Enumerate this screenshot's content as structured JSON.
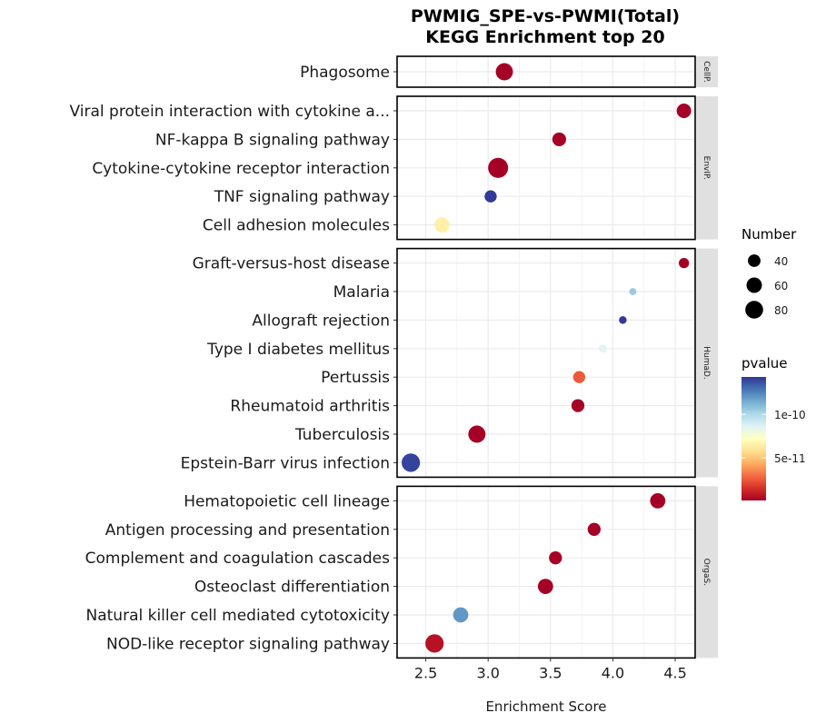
{
  "chart_data": {
    "type": "scatter",
    "title": [
      "PWMIG_SPE-vs-PWMI(Total)",
      "KEGG Enrichment top 20"
    ],
    "xlabel": "Enrichment Score",
    "ylabel": "",
    "xlim": [
      2.27,
      4.66
    ],
    "xticks": [
      2.5,
      3.0,
      3.5,
      4.0,
      4.5
    ],
    "xtick_labels": [
      "2.5",
      "3.0",
      "3.5",
      "4.0",
      "4.5"
    ],
    "grid": true,
    "facets": [
      {
        "strip": "CellP.",
        "terms": [
          {
            "term": "Phagosome",
            "score": 3.13,
            "number": 70,
            "pvalue": 1e-12
          }
        ]
      },
      {
        "strip": "EnvIP.",
        "terms": [
          {
            "term": "Viral protein interaction with cytokine a...",
            "score": 4.57,
            "number": 50,
            "pvalue": 1e-12
          },
          {
            "term": "NF-kappa B signaling pathway",
            "score": 3.57,
            "number": 45,
            "pvalue": 1e-12
          },
          {
            "term": "Cytokine-cytokine receptor interaction",
            "score": 3.08,
            "number": 95,
            "pvalue": 1e-12
          },
          {
            "term": "TNF signaling pathway",
            "score": 3.02,
            "number": 35,
            "pvalue": 1.42e-10
          },
          {
            "term": "Cell adhesion molecules",
            "score": 2.63,
            "number": 55,
            "pvalue": 6.5e-11
          }
        ]
      },
      {
        "strip": "HumaD.",
        "terms": [
          {
            "term": "Graft-versus-host disease",
            "score": 4.57,
            "number": 25,
            "pvalue": 1e-12
          },
          {
            "term": "Malaria",
            "score": 4.16,
            "number": 12,
            "pvalue": 1.05e-10
          },
          {
            "term": "Allograft rejection",
            "score": 4.08,
            "number": 14,
            "pvalue": 1.42e-10
          },
          {
            "term": "Type I diabetes mellitus",
            "score": 3.92,
            "number": 16,
            "pvalue": 8.5e-11
          },
          {
            "term": "Pertussis",
            "score": 3.73,
            "number": 35,
            "pvalue": 2.5e-11
          },
          {
            "term": "Rheumatoid arthritis",
            "score": 3.72,
            "number": 40,
            "pvalue": 1e-12
          },
          {
            "term": "Tuberculosis",
            "score": 2.91,
            "number": 70,
            "pvalue": 1e-12
          },
          {
            "term": "Epstein-Barr virus infection",
            "score": 2.38,
            "number": 80,
            "pvalue": 1.4e-10
          }
        ]
      },
      {
        "strip": "OrgaS.",
        "terms": [
          {
            "term": "Hematopoietic cell lineage",
            "score": 4.36,
            "number": 55,
            "pvalue": 1e-12
          },
          {
            "term": "Antigen processing and presentation",
            "score": 3.85,
            "number": 40,
            "pvalue": 1e-12
          },
          {
            "term": "Complement and coagulation cascades",
            "score": 3.54,
            "number": 40,
            "pvalue": 1e-12
          },
          {
            "term": "Osteoclast differentiation",
            "score": 3.46,
            "number": 55,
            "pvalue": 1e-12
          },
          {
            "term": "Natural killer cell mediated cytotoxicity",
            "score": 2.78,
            "number": 55,
            "pvalue": 1.2e-10
          },
          {
            "term": "NOD-like receptor signaling pathway",
            "score": 2.57,
            "number": 80,
            "pvalue": 6e-12
          }
        ]
      }
    ],
    "size_legend": {
      "title": "Number",
      "values": [
        40,
        60,
        80
      ],
      "labels": [
        "40",
        "60",
        "80"
      ]
    },
    "color_legend": {
      "title": "pvalue",
      "range": [
        1e-12,
        1.43e-10
      ],
      "ticks": [
        1e-10,
        5e-11
      ],
      "tick_labels": [
        "1e-10",
        "5e-11"
      ],
      "colors": [
        "#a50026",
        "#d73027",
        "#f46d43",
        "#fdae61",
        "#fee090",
        "#ffffbf",
        "#e0f3f8",
        "#abd9e9",
        "#74add1",
        "#4575b4",
        "#313695"
      ]
    },
    "legend_position": "right"
  }
}
